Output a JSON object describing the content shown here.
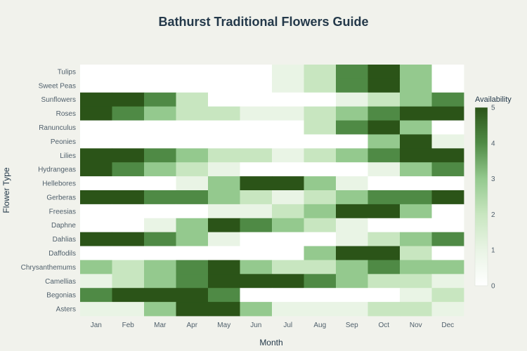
{
  "chart_data": {
    "type": "heatmap",
    "title": "Bathurst Traditional Flowers Guide",
    "xlabel": "Month",
    "ylabel": "Flower Type",
    "x": [
      "Jan",
      "Feb",
      "Mar",
      "Apr",
      "May",
      "Jun",
      "Jul",
      "Aug",
      "Sep",
      "Oct",
      "Nov",
      "Dec"
    ],
    "y": [
      "Tulips",
      "Sweet Peas",
      "Sunflowers",
      "Roses",
      "Ranunculus",
      "Peonies",
      "Lilies",
      "Hydrangeas",
      "Hellebores",
      "Gerberas",
      "Freesias",
      "Daphne",
      "Dahlias",
      "Daffodils",
      "Chrysanthemums",
      "Camellias",
      "Begonias",
      "Asters"
    ],
    "z": [
      [
        0,
        0,
        0,
        0,
        0,
        0,
        1,
        2,
        4,
        5,
        3,
        0
      ],
      [
        0,
        0,
        0,
        0,
        0,
        0,
        1,
        2,
        4,
        5,
        3,
        0
      ],
      [
        5,
        5,
        4,
        2,
        0,
        0,
        0,
        0,
        1,
        2,
        3,
        4
      ],
      [
        5,
        4,
        3,
        2,
        2,
        1,
        1,
        2,
        3,
        4,
        5,
        5
      ],
      [
        0,
        0,
        0,
        0,
        0,
        0,
        0,
        2,
        4,
        5,
        3,
        0
      ],
      [
        0,
        0,
        0,
        0,
        0,
        0,
        0,
        0,
        0,
        3,
        5,
        1
      ],
      [
        5,
        5,
        4,
        3,
        2,
        2,
        1,
        2,
        3,
        4,
        5,
        5
      ],
      [
        5,
        4,
        3,
        2,
        1,
        0,
        0,
        0,
        0,
        1,
        3,
        4
      ],
      [
        0,
        0,
        0,
        1,
        3,
        5,
        5,
        3,
        1,
        0,
        0,
        0
      ],
      [
        5,
        5,
        4,
        4,
        3,
        2,
        1,
        2,
        3,
        4,
        4,
        5
      ],
      [
        0,
        0,
        0,
        0,
        1,
        1,
        2,
        3,
        5,
        5,
        3,
        0
      ],
      [
        0,
        0,
        1,
        3,
        5,
        4,
        3,
        2,
        1,
        0,
        0,
        0
      ],
      [
        5,
        5,
        4,
        3,
        1,
        0,
        0,
        0,
        1,
        2,
        3,
        4
      ],
      [
        0,
        0,
        0,
        0,
        0,
        0,
        0,
        3,
        5,
        5,
        2,
        0
      ],
      [
        3,
        2,
        3,
        4,
        5,
        3,
        2,
        2,
        3,
        4,
        3,
        3
      ],
      [
        1,
        2,
        3,
        4,
        5,
        5,
        5,
        4,
        3,
        2,
        2,
        1
      ],
      [
        4,
        5,
        5,
        5,
        4,
        0,
        0,
        0,
        0,
        0,
        1,
        2
      ],
      [
        1,
        1,
        3,
        5,
        5,
        3,
        1,
        1,
        1,
        2,
        2,
        1
      ]
    ],
    "colorbar": {
      "title": "Availability",
      "range": [
        0,
        5
      ],
      "ticks": [
        0,
        1,
        2,
        3,
        4,
        5
      ],
      "colors": [
        "#ffffff",
        "#e9f4e5",
        "#c8e6c0",
        "#94c98e",
        "#4f8a45",
        "#2b5418"
      ]
    },
    "grid": false,
    "legend": "colorbar-right"
  }
}
